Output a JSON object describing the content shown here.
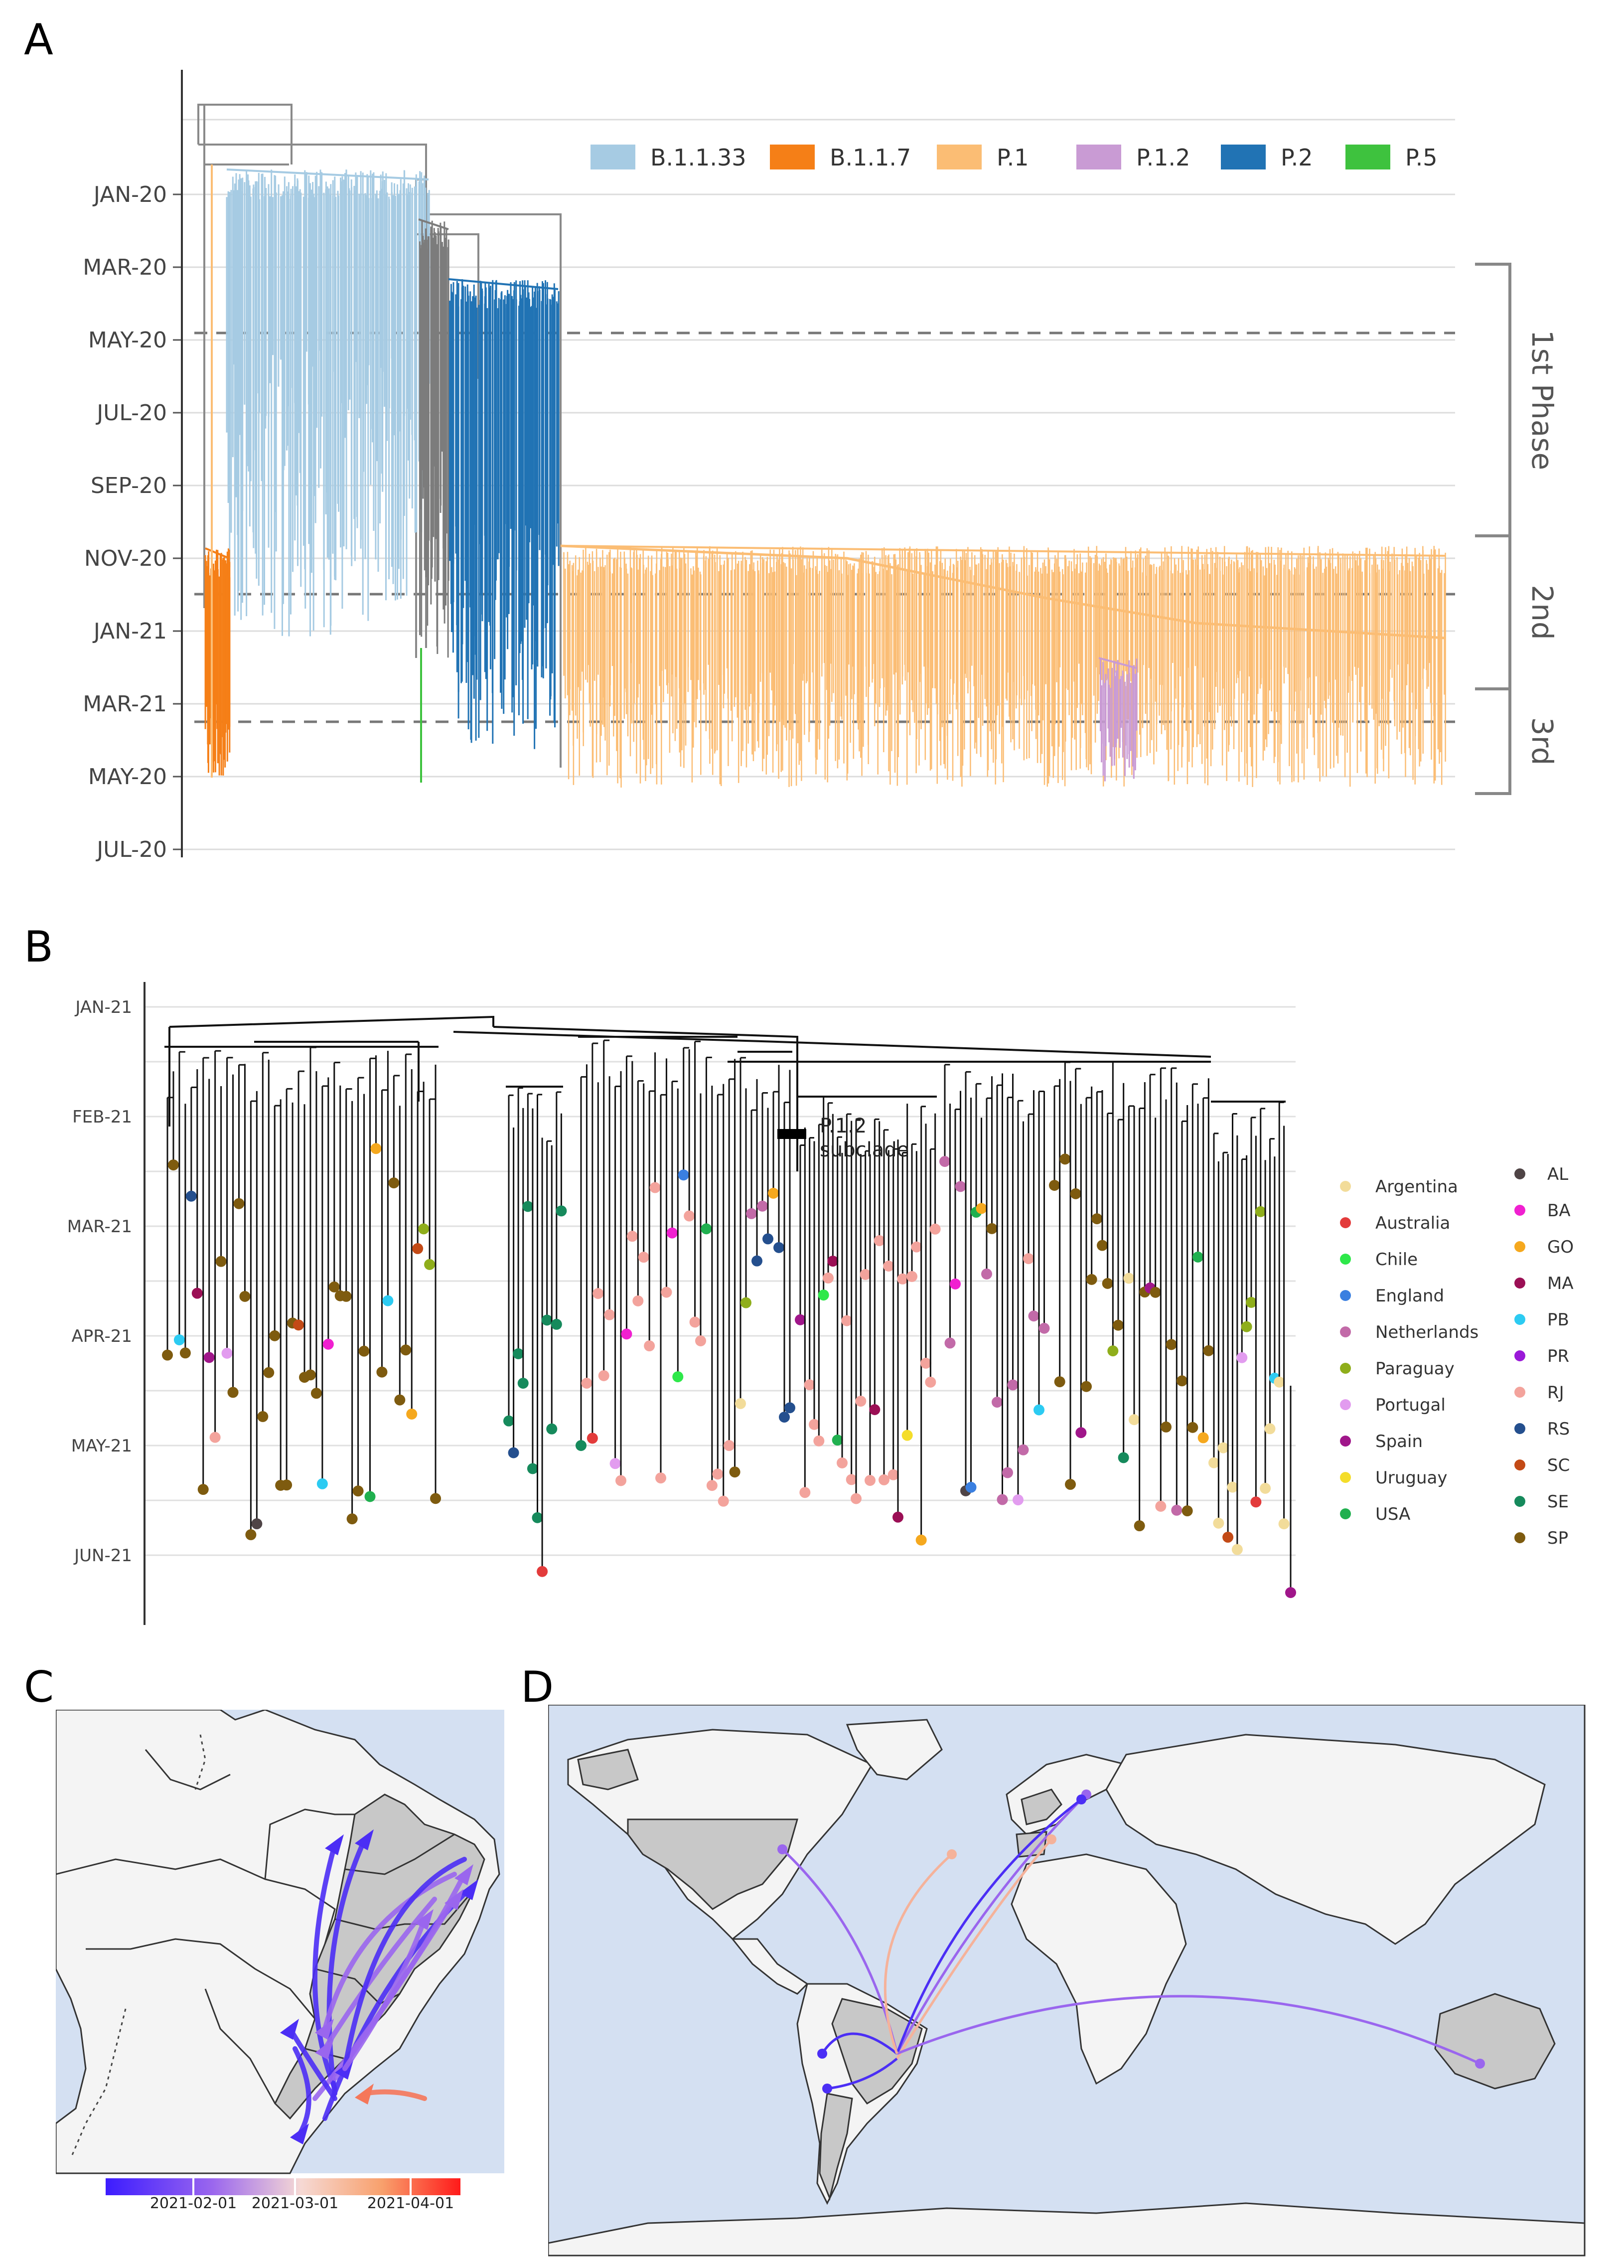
{
  "panels": {
    "A": {
      "letter": "A",
      "y_ticks": [
        "JAN-20",
        "MAR-20",
        "MAY-20",
        "JUL-20",
        "SEP-20",
        "NOV-20",
        "JAN-21",
        "MAR-21",
        "MAY-20",
        "JUL-20"
      ],
      "legend": [
        {
          "label": "B.1.1.33",
          "color": "#a6cbe3"
        },
        {
          "label": "B.1.1.7",
          "color": "#f57f17"
        },
        {
          "label": "P.1",
          "color": "#fbbd74"
        },
        {
          "label": "P.1.2",
          "color": "#c99bd4"
        },
        {
          "label": "P.2",
          "color": "#2173b4"
        },
        {
          "label": "P.5",
          "color": "#3ec23e"
        }
      ],
      "phases": [
        "1st Phase",
        "2nd",
        "3rd"
      ]
    },
    "B": {
      "letter": "B",
      "y_ticks": [
        "JAN-21",
        "FEB-21",
        "MAR-21",
        "APR-21",
        "MAY-21",
        "JUN-21"
      ],
      "annotation_line1": "P.1.2",
      "annotation_line2": "subclade",
      "countries": [
        {
          "label": "Argentina",
          "color": "#f2dc9a"
        },
        {
          "label": "Australia",
          "color": "#e33b3b"
        },
        {
          "label": "Chile",
          "color": "#2ee84a"
        },
        {
          "label": "England",
          "color": "#3a7fe0"
        },
        {
          "label": "Netherlands",
          "color": "#c26aa8"
        },
        {
          "label": "Paraguay",
          "color": "#8fae1b"
        },
        {
          "label": "Portugal",
          "color": "#e29cef"
        },
        {
          "label": "Spain",
          "color": "#a0168a"
        },
        {
          "label": "Uruguay",
          "color": "#f4dd2a"
        },
        {
          "label": "USA",
          "color": "#20b04f"
        }
      ],
      "states": [
        {
          "label": "AL",
          "color": "#4f4446"
        },
        {
          "label": "BA",
          "color": "#f020d0"
        },
        {
          "label": "GO",
          "color": "#f5a81e"
        },
        {
          "label": "MA",
          "color": "#9b0f55"
        },
        {
          "label": "PB",
          "color": "#2ccbf2"
        },
        {
          "label": "PR",
          "color": "#9a19d8"
        },
        {
          "label": "RJ",
          "color": "#f3a39c"
        },
        {
          "label": "RS",
          "color": "#244f8e"
        },
        {
          "label": "SC",
          "color": "#c34a16"
        },
        {
          "label": "SE",
          "color": "#168a5c"
        },
        {
          "label": "SP",
          "color": "#7e5b0f"
        }
      ]
    },
    "C": {
      "letter": "C",
      "colorbar_labels": [
        "2021-02-01",
        "2021-03-01",
        "2021-04-01"
      ]
    },
    "D": {
      "letter": "D"
    }
  },
  "colors": {
    "ocean": "#d4e0f2",
    "land": "#f4f4f4",
    "highlight_land": "#c8c8c8",
    "arrow_early": "#4b2ef5",
    "arrow_mid": "#9a66ee",
    "arrow_late": "#f5775a"
  }
}
